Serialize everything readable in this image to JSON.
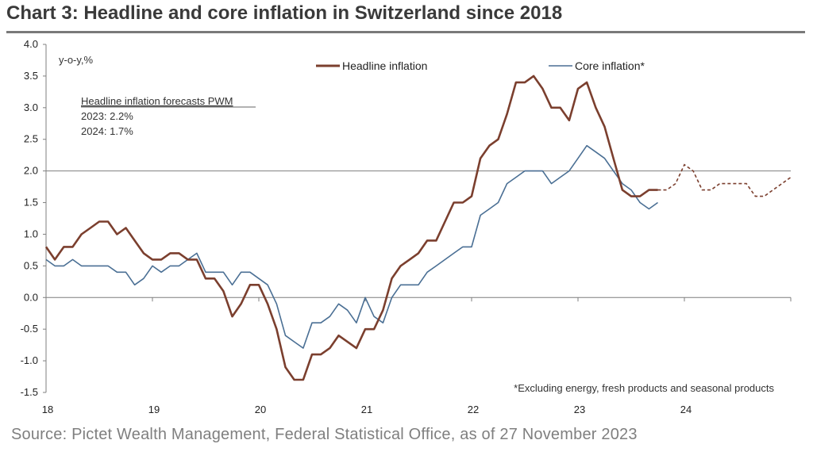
{
  "title": "Chart 3: Headline and core inflation in Switzerland since 2018",
  "source": "Source: Pictet Wealth Management, Federal Statistical Office, as of 27 November 2023",
  "colors": {
    "headline": "#7b3f2e",
    "core": "#4a6f94",
    "axis": "#7f7f7f",
    "reference": "#7f7f7f",
    "title_rule": "#7a7a7a"
  },
  "chart_data": {
    "type": "line",
    "y_unit_label": "y-o-y,%",
    "ylim": [
      -1.5,
      4.0
    ],
    "y_ticks": [
      4.0,
      3.5,
      3.0,
      2.5,
      2.0,
      1.5,
      1.0,
      0.5,
      0.0,
      -0.5,
      -1.0,
      -1.5
    ],
    "xlim": [
      2018.0,
      2025.0
    ],
    "x_ticks": [
      {
        "x": 2018,
        "label": "18"
      },
      {
        "x": 2019,
        "label": "19"
      },
      {
        "x": 2020,
        "label": "20"
      },
      {
        "x": 2021,
        "label": "21"
      },
      {
        "x": 2022,
        "label": "22"
      },
      {
        "x": 2023,
        "label": "23"
      },
      {
        "x": 2024,
        "label": "24"
      }
    ],
    "reference_line": 2.0,
    "grid": false,
    "legend_placement": "top",
    "series": [
      {
        "name": "Headline inflation",
        "x": [
          2018.0,
          2018.083,
          2018.167,
          2018.25,
          2018.333,
          2018.417,
          2018.5,
          2018.583,
          2018.667,
          2018.75,
          2018.833,
          2018.917,
          2019.0,
          2019.083,
          2019.167,
          2019.25,
          2019.333,
          2019.417,
          2019.5,
          2019.583,
          2019.667,
          2019.75,
          2019.833,
          2019.917,
          2020.0,
          2020.083,
          2020.167,
          2020.25,
          2020.333,
          2020.417,
          2020.5,
          2020.583,
          2020.667,
          2020.75,
          2020.833,
          2020.917,
          2021.0,
          2021.083,
          2021.167,
          2021.25,
          2021.333,
          2021.417,
          2021.5,
          2021.583,
          2021.667,
          2021.75,
          2021.833,
          2021.917,
          2022.0,
          2022.083,
          2022.167,
          2022.25,
          2022.333,
          2022.417,
          2022.5,
          2022.583,
          2022.667,
          2022.75,
          2022.833,
          2022.917,
          2023.0,
          2023.083,
          2023.167,
          2023.25,
          2023.333,
          2023.417,
          2023.5,
          2023.583,
          2023.667,
          2023.75
        ],
        "values": [
          0.8,
          0.6,
          0.8,
          0.8,
          1.0,
          1.1,
          1.2,
          1.2,
          1.0,
          1.1,
          0.9,
          0.7,
          0.6,
          0.6,
          0.7,
          0.7,
          0.6,
          0.6,
          0.3,
          0.3,
          0.1,
          -0.3,
          -0.1,
          0.2,
          0.2,
          -0.1,
          -0.5,
          -1.1,
          -1.3,
          -1.3,
          -0.9,
          -0.9,
          -0.8,
          -0.6,
          -0.7,
          -0.8,
          -0.5,
          -0.5,
          -0.2,
          0.3,
          0.5,
          0.6,
          0.7,
          0.9,
          0.9,
          1.2,
          1.5,
          1.5,
          1.6,
          2.2,
          2.4,
          2.5,
          2.9,
          3.4,
          3.4,
          3.5,
          3.3,
          3.0,
          3.0,
          2.8,
          3.3,
          3.4,
          3.0,
          2.7,
          2.2,
          1.7,
          1.6,
          1.6,
          1.7,
          1.7
        ]
      },
      {
        "name": "Core inflation*",
        "x": [
          2018.0,
          2018.083,
          2018.167,
          2018.25,
          2018.333,
          2018.417,
          2018.5,
          2018.583,
          2018.667,
          2018.75,
          2018.833,
          2018.917,
          2019.0,
          2019.083,
          2019.167,
          2019.25,
          2019.333,
          2019.417,
          2019.5,
          2019.583,
          2019.667,
          2019.75,
          2019.833,
          2019.917,
          2020.0,
          2020.083,
          2020.167,
          2020.25,
          2020.333,
          2020.417,
          2020.5,
          2020.583,
          2020.667,
          2020.75,
          2020.833,
          2020.917,
          2021.0,
          2021.083,
          2021.167,
          2021.25,
          2021.333,
          2021.417,
          2021.5,
          2021.583,
          2021.667,
          2021.75,
          2021.833,
          2021.917,
          2022.0,
          2022.083,
          2022.167,
          2022.25,
          2022.333,
          2022.417,
          2022.5,
          2022.583,
          2022.667,
          2022.75,
          2022.833,
          2022.917,
          2023.0,
          2023.083,
          2023.167,
          2023.25,
          2023.333,
          2023.417,
          2023.5,
          2023.583,
          2023.667,
          2023.75
        ],
        "values": [
          0.6,
          0.5,
          0.5,
          0.6,
          0.5,
          0.5,
          0.5,
          0.5,
          0.4,
          0.4,
          0.2,
          0.3,
          0.5,
          0.4,
          0.5,
          0.5,
          0.6,
          0.7,
          0.4,
          0.4,
          0.4,
          0.2,
          0.4,
          0.4,
          0.3,
          0.2,
          -0.1,
          -0.6,
          -0.7,
          -0.8,
          -0.4,
          -0.4,
          -0.3,
          -0.1,
          -0.2,
          -0.4,
          0.0,
          -0.3,
          -0.4,
          0.0,
          0.2,
          0.2,
          0.2,
          0.4,
          0.5,
          0.6,
          0.7,
          0.8,
          0.8,
          1.3,
          1.4,
          1.5,
          1.8,
          1.9,
          2.0,
          2.0,
          2.0,
          1.8,
          1.9,
          2.0,
          2.2,
          2.4,
          2.3,
          2.2,
          2.0,
          1.8,
          1.7,
          1.5,
          1.4,
          1.5
        ]
      },
      {
        "role": "forecast",
        "x": [
          2023.75,
          2023.833,
          2023.917,
          2024.0,
          2024.083,
          2024.167,
          2024.25,
          2024.333,
          2024.417,
          2024.5,
          2024.583,
          2024.667,
          2024.75,
          2024.833,
          2024.917,
          2025.0
        ],
        "values": [
          1.7,
          1.7,
          1.8,
          2.1,
          2.0,
          1.7,
          1.7,
          1.8,
          1.8,
          1.8,
          1.8,
          1.6,
          1.6,
          1.7,
          1.8,
          1.9
        ]
      }
    ],
    "annotations": {
      "forecast_heading": "Headline inflation forecasts PWM",
      "forecast_2023": "2023: 2.2%",
      "forecast_2024": "2024: 1.7%",
      "footnote": "*Excluding energy, fresh products and seasonal products"
    }
  }
}
